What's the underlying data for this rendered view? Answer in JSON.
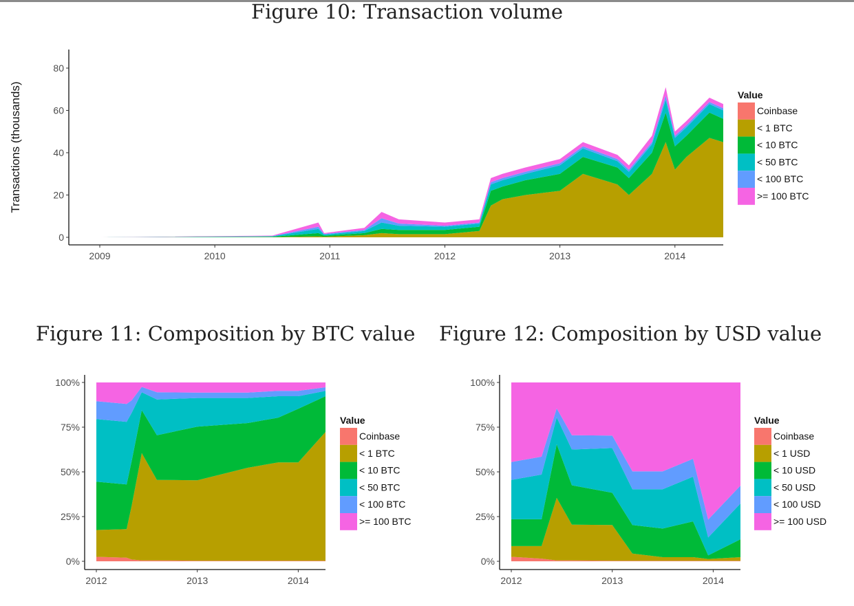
{
  "figures": {
    "fig10_title": "Figure 10: Transaction volume",
    "fig11_title": "Figure 11: Composition by BTC value",
    "fig12_title": "Figure 12: Composition by USD value"
  },
  "chart_data": [
    {
      "type": "area",
      "stacked": true,
      "title": "",
      "xlabel": "",
      "ylabel": "Transactions (thousands)",
      "x_ticks": [
        "2009",
        "2010",
        "2011",
        "2012",
        "2013",
        "2014"
      ],
      "y_ticks": [
        0,
        20,
        40,
        60,
        80
      ],
      "xlim": [
        2009.0,
        2014.42
      ],
      "ylim": [
        0,
        88
      ],
      "legend_title": "Value",
      "legend_position": "right",
      "grid": false,
      "colors": [
        "#F8766D",
        "#B79F00",
        "#00BA38",
        "#00BFC4",
        "#619CFF",
        "#F564E3"
      ],
      "x": [
        2009.0,
        2010.5,
        2010.9,
        2010.95,
        2011.3,
        2011.45,
        2011.6,
        2012.0,
        2012.3,
        2012.4,
        2012.5,
        2012.7,
        2013.0,
        2013.2,
        2013.5,
        2013.6,
        2013.8,
        2013.92,
        2014.0,
        2014.1,
        2014.3,
        2014.42
      ],
      "series": [
        {
          "name": "Coinbase",
          "values": [
            0,
            0,
            0,
            0,
            0,
            0,
            0,
            0,
            0,
            0,
            0,
            0,
            0,
            0,
            0,
            0,
            0,
            0,
            0,
            0,
            0,
            0
          ]
        },
        {
          "name": "< 1 BTC",
          "values": [
            0,
            0.1,
            0.5,
            0.3,
            1,
            2,
            1.5,
            1.5,
            3,
            15,
            18,
            20,
            22,
            30,
            25,
            20,
            30,
            45,
            32,
            38,
            47,
            45
          ]
        },
        {
          "name": "< 10 BTC",
          "values": [
            0,
            0.2,
            1.5,
            0.5,
            1,
            2,
            2,
            2,
            2,
            7,
            6,
            7,
            8,
            8,
            8,
            8,
            10,
            14,
            11,
            10,
            12,
            11
          ]
        },
        {
          "name": "< 50 BTC",
          "values": [
            0,
            0.2,
            2,
            0.5,
            1,
            3,
            2,
            1.5,
            1.5,
            3,
            3,
            3,
            4,
            4,
            3,
            3,
            4,
            6,
            4,
            4,
            4,
            4
          ]
        },
        {
          "name": "< 100 BTC",
          "values": [
            0,
            0.1,
            1,
            0.3,
            0.5,
            2,
            1,
            0.5,
            0.5,
            1,
            1,
            1,
            1,
            1,
            1,
            1,
            1,
            2,
            1,
            1,
            1,
            1
          ]
        },
        {
          "name": ">= 100 BTC",
          "values": [
            0,
            0.2,
            2,
            0.4,
            1,
            3,
            2,
            1.5,
            1.5,
            2,
            2,
            2,
            2,
            2,
            2,
            2,
            3,
            4,
            2,
            2,
            2,
            2
          ]
        }
      ]
    },
    {
      "type": "area",
      "stacked": true,
      "title": "",
      "xlabel": "",
      "ylabel": "",
      "x_ticks": [
        "2012",
        "2013",
        "2014"
      ],
      "y_ticks": [
        "0%",
        "25%",
        "50%",
        "75%",
        "100%"
      ],
      "xlim": [
        2012.0,
        2014.27
      ],
      "ylim": [
        0,
        100
      ],
      "legend_title": "Value",
      "legend_position": "right",
      "grid": false,
      "colors": [
        "#F8766D",
        "#B79F00",
        "#00BA38",
        "#00BFC4",
        "#619CFF",
        "#F564E3"
      ],
      "x": [
        2012.0,
        2012.3,
        2012.35,
        2012.45,
        2012.6,
        2013.0,
        2013.5,
        2013.8,
        2014.0,
        2014.27
      ],
      "series": [
        {
          "name": "Coinbase",
          "values": [
            2.5,
            2,
            1,
            0.5,
            0.5,
            0.3,
            0.3,
            0.3,
            0.3,
            0.3
          ]
        },
        {
          "name": "< 1 BTC",
          "values": [
            15,
            16,
            30,
            60,
            45,
            45,
            52,
            55,
            55,
            72
          ]
        },
        {
          "name": "< 10 BTC",
          "values": [
            27,
            25,
            25,
            24,
            25,
            30,
            25,
            25,
            30,
            20
          ]
        },
        {
          "name": "< 50 BTC",
          "values": [
            35,
            35,
            27,
            10,
            20,
            16,
            14,
            12,
            7,
            3
          ]
        },
        {
          "name": "< 100 BTC",
          "values": [
            10,
            10,
            7,
            3,
            4,
            3,
            3,
            3,
            3,
            2
          ]
        },
        {
          "name": ">= 100 BTC",
          "values": [
            10.5,
            12,
            10,
            2.5,
            5.5,
            5.7,
            5.7,
            4.7,
            4.7,
            2.7
          ]
        }
      ]
    },
    {
      "type": "area",
      "stacked": true,
      "title": "",
      "xlabel": "",
      "ylabel": "",
      "x_ticks": [
        "2012",
        "2013",
        "2014"
      ],
      "y_ticks": [
        "0%",
        "25%",
        "50%",
        "75%",
        "100%"
      ],
      "xlim": [
        2012.0,
        2014.27
      ],
      "ylim": [
        0,
        100
      ],
      "legend_title": "Value",
      "legend_position": "right",
      "grid": false,
      "colors": [
        "#F8766D",
        "#B79F00",
        "#00BA38",
        "#00BFC4",
        "#619CFF",
        "#F564E3"
      ],
      "x": [
        2012.0,
        2012.3,
        2012.45,
        2012.6,
        2013.0,
        2013.2,
        2013.5,
        2013.8,
        2013.95,
        2014.27
      ],
      "series": [
        {
          "name": "Coinbase",
          "values": [
            2.5,
            1.5,
            0.5,
            0.5,
            0.3,
            0.3,
            0.3,
            0.3,
            0.3,
            0.3
          ]
        },
        {
          "name": "< 1 USD",
          "values": [
            6,
            7,
            35,
            20,
            20,
            4,
            2,
            2,
            1,
            2
          ]
        },
        {
          "name": "< 10 USD",
          "values": [
            15,
            15,
            30,
            22,
            18,
            16,
            16,
            20,
            2,
            10
          ]
        },
        {
          "name": "< 50 USD",
          "values": [
            22,
            25,
            15,
            20,
            25,
            20,
            22,
            25,
            10,
            20
          ]
        },
        {
          "name": "< 100 USD",
          "values": [
            10,
            10,
            5,
            8,
            7,
            10,
            10,
            10,
            10,
            10
          ]
        },
        {
          "name": ">= 100 USD",
          "values": [
            44.5,
            41.5,
            14.5,
            29.5,
            29.7,
            49.7,
            49.7,
            42.7,
            76.7,
            57.7
          ]
        }
      ]
    }
  ]
}
